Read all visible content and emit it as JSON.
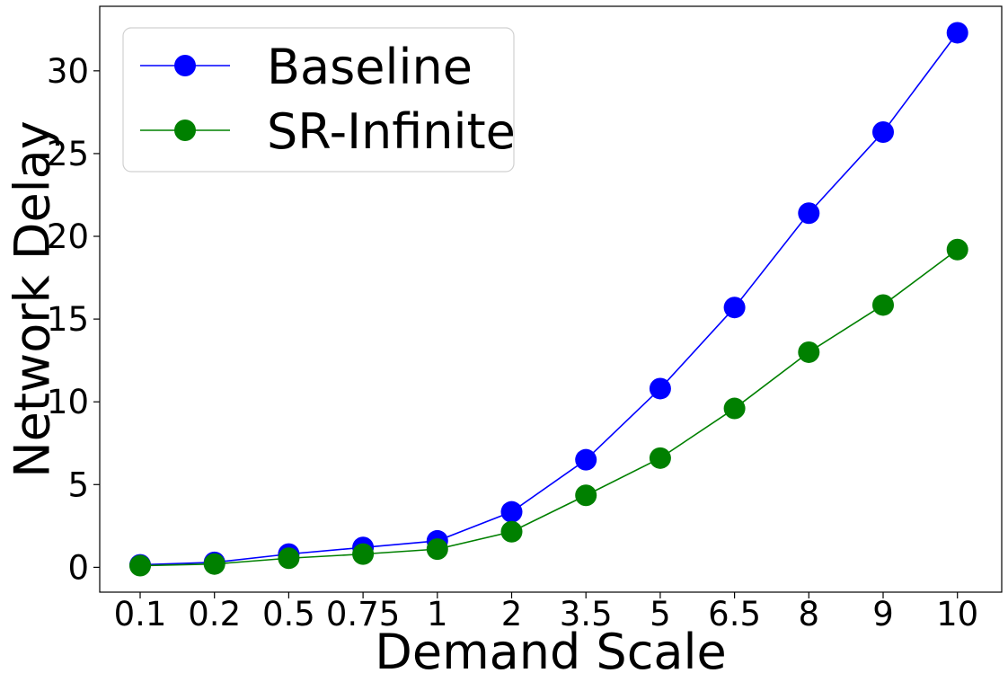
{
  "chart_data": {
    "type": "line",
    "xlabel": "Demand Scale",
    "ylabel": "Network Delay",
    "categories": [
      "0.1",
      "0.2",
      "0.5",
      "0.75",
      "1",
      "2",
      "3.5",
      "5",
      "6.5",
      "8",
      "9",
      "10"
    ],
    "yticks": [
      "0",
      "5",
      "10",
      "15",
      "20",
      "25",
      "30"
    ],
    "ylim": [
      -1.5,
      33.9
    ],
    "grid": false,
    "legend_position": "top-left",
    "series": [
      {
        "name": "Baseline",
        "color": "#0000ff",
        "marker": "circle",
        "values": [
          0.15,
          0.3,
          0.8,
          1.2,
          1.6,
          3.35,
          6.5,
          10.8,
          15.7,
          21.4,
          26.3,
          32.3
        ]
      },
      {
        "name": "SR-Infinite",
        "color": "#008000",
        "marker": "circle",
        "values": [
          0.1,
          0.2,
          0.55,
          0.8,
          1.1,
          2.15,
          4.35,
          6.6,
          9.6,
          13.0,
          15.85,
          19.2
        ]
      }
    ]
  }
}
